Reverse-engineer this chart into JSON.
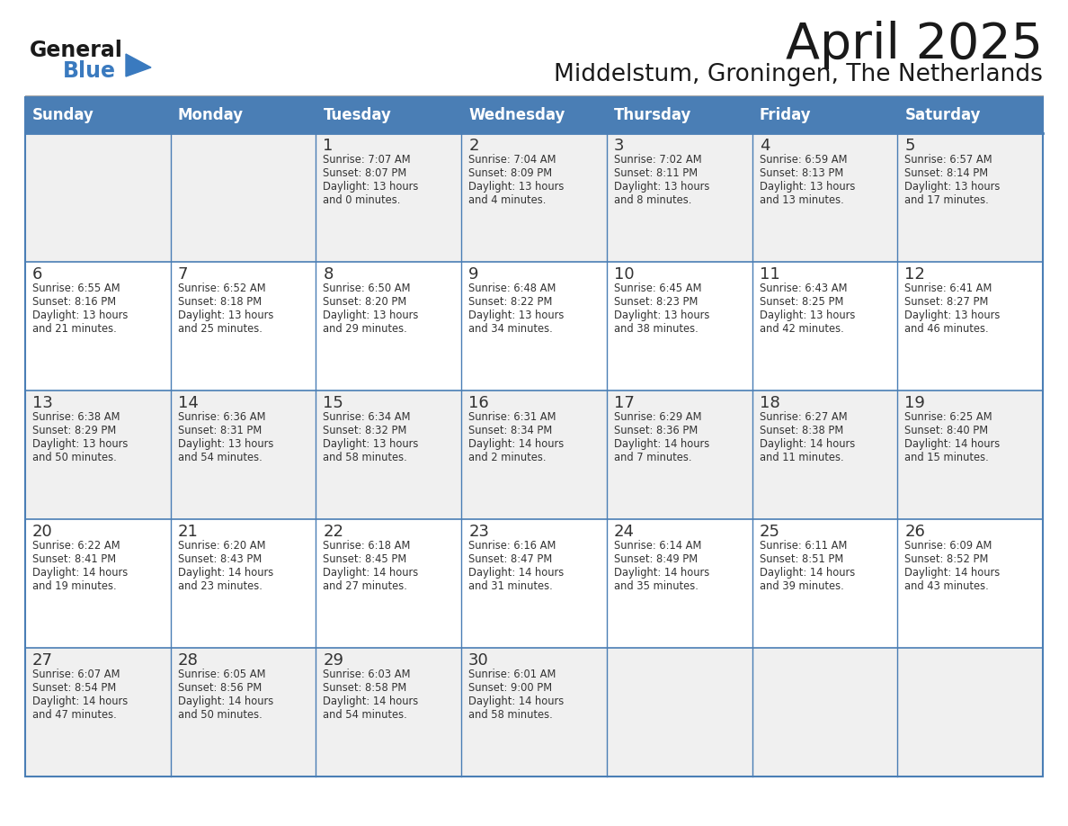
{
  "title": "April 2025",
  "subtitle": "Middelstum, Groningen, The Netherlands",
  "days_of_week": [
    "Sunday",
    "Monday",
    "Tuesday",
    "Wednesday",
    "Thursday",
    "Friday",
    "Saturday"
  ],
  "header_bg": "#4a7eb5",
  "header_text": "#ffffff",
  "cell_bg_gray": "#f0f0f0",
  "cell_bg_white": "#ffffff",
  "cell_border": "#4a7eb5",
  "text_color": "#333333",
  "title_color": "#1a1a1a",
  "logo_general_color": "#1a1a1a",
  "logo_blue_color": "#3a7abf",
  "calendar": [
    [
      {
        "day": "",
        "sunrise": "",
        "sunset": "",
        "daylight_h": "",
        "daylight_m": ""
      },
      {
        "day": "",
        "sunrise": "",
        "sunset": "",
        "daylight_h": "",
        "daylight_m": ""
      },
      {
        "day": "1",
        "sunrise": "7:07 AM",
        "sunset": "8:07 PM",
        "daylight_h": "13",
        "daylight_m": "0"
      },
      {
        "day": "2",
        "sunrise": "7:04 AM",
        "sunset": "8:09 PM",
        "daylight_h": "13",
        "daylight_m": "4"
      },
      {
        "day": "3",
        "sunrise": "7:02 AM",
        "sunset": "8:11 PM",
        "daylight_h": "13",
        "daylight_m": "8"
      },
      {
        "day": "4",
        "sunrise": "6:59 AM",
        "sunset": "8:13 PM",
        "daylight_h": "13",
        "daylight_m": "13"
      },
      {
        "day": "5",
        "sunrise": "6:57 AM",
        "sunset": "8:14 PM",
        "daylight_h": "13",
        "daylight_m": "17"
      }
    ],
    [
      {
        "day": "6",
        "sunrise": "6:55 AM",
        "sunset": "8:16 PM",
        "daylight_h": "13",
        "daylight_m": "21"
      },
      {
        "day": "7",
        "sunrise": "6:52 AM",
        "sunset": "8:18 PM",
        "daylight_h": "13",
        "daylight_m": "25"
      },
      {
        "day": "8",
        "sunrise": "6:50 AM",
        "sunset": "8:20 PM",
        "daylight_h": "13",
        "daylight_m": "29"
      },
      {
        "day": "9",
        "sunrise": "6:48 AM",
        "sunset": "8:22 PM",
        "daylight_h": "13",
        "daylight_m": "34"
      },
      {
        "day": "10",
        "sunrise": "6:45 AM",
        "sunset": "8:23 PM",
        "daylight_h": "13",
        "daylight_m": "38"
      },
      {
        "day": "11",
        "sunrise": "6:43 AM",
        "sunset": "8:25 PM",
        "daylight_h": "13",
        "daylight_m": "42"
      },
      {
        "day": "12",
        "sunrise": "6:41 AM",
        "sunset": "8:27 PM",
        "daylight_h": "13",
        "daylight_m": "46"
      }
    ],
    [
      {
        "day": "13",
        "sunrise": "6:38 AM",
        "sunset": "8:29 PM",
        "daylight_h": "13",
        "daylight_m": "50"
      },
      {
        "day": "14",
        "sunrise": "6:36 AM",
        "sunset": "8:31 PM",
        "daylight_h": "13",
        "daylight_m": "54"
      },
      {
        "day": "15",
        "sunrise": "6:34 AM",
        "sunset": "8:32 PM",
        "daylight_h": "13",
        "daylight_m": "58"
      },
      {
        "day": "16",
        "sunrise": "6:31 AM",
        "sunset": "8:34 PM",
        "daylight_h": "14",
        "daylight_m": "2"
      },
      {
        "day": "17",
        "sunrise": "6:29 AM",
        "sunset": "8:36 PM",
        "daylight_h": "14",
        "daylight_m": "7"
      },
      {
        "day": "18",
        "sunrise": "6:27 AM",
        "sunset": "8:38 PM",
        "daylight_h": "14",
        "daylight_m": "11"
      },
      {
        "day": "19",
        "sunrise": "6:25 AM",
        "sunset": "8:40 PM",
        "daylight_h": "14",
        "daylight_m": "15"
      }
    ],
    [
      {
        "day": "20",
        "sunrise": "6:22 AM",
        "sunset": "8:41 PM",
        "daylight_h": "14",
        "daylight_m": "19"
      },
      {
        "day": "21",
        "sunrise": "6:20 AM",
        "sunset": "8:43 PM",
        "daylight_h": "14",
        "daylight_m": "23"
      },
      {
        "day": "22",
        "sunrise": "6:18 AM",
        "sunset": "8:45 PM",
        "daylight_h": "14",
        "daylight_m": "27"
      },
      {
        "day": "23",
        "sunrise": "6:16 AM",
        "sunset": "8:47 PM",
        "daylight_h": "14",
        "daylight_m": "31"
      },
      {
        "day": "24",
        "sunrise": "6:14 AM",
        "sunset": "8:49 PM",
        "daylight_h": "14",
        "daylight_m": "35"
      },
      {
        "day": "25",
        "sunrise": "6:11 AM",
        "sunset": "8:51 PM",
        "daylight_h": "14",
        "daylight_m": "39"
      },
      {
        "day": "26",
        "sunrise": "6:09 AM",
        "sunset": "8:52 PM",
        "daylight_h": "14",
        "daylight_m": "43"
      }
    ],
    [
      {
        "day": "27",
        "sunrise": "6:07 AM",
        "sunset": "8:54 PM",
        "daylight_h": "14",
        "daylight_m": "47"
      },
      {
        "day": "28",
        "sunrise": "6:05 AM",
        "sunset": "8:56 PM",
        "daylight_h": "14",
        "daylight_m": "50"
      },
      {
        "day": "29",
        "sunrise": "6:03 AM",
        "sunset": "8:58 PM",
        "daylight_h": "14",
        "daylight_m": "54"
      },
      {
        "day": "30",
        "sunrise": "6:01 AM",
        "sunset": "9:00 PM",
        "daylight_h": "14",
        "daylight_m": "58"
      },
      {
        "day": "",
        "sunrise": "",
        "sunset": "",
        "daylight_h": "",
        "daylight_m": ""
      },
      {
        "day": "",
        "sunrise": "",
        "sunset": "",
        "daylight_h": "",
        "daylight_m": ""
      },
      {
        "day": "",
        "sunrise": "",
        "sunset": "",
        "daylight_h": "",
        "daylight_m": ""
      }
    ]
  ]
}
